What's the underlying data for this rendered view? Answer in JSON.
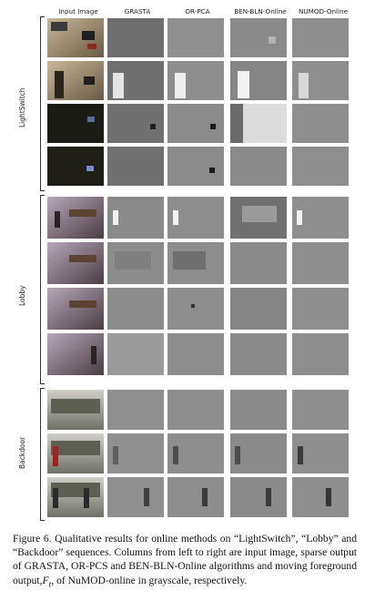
{
  "columns": [
    "Input Image",
    "GRASTA",
    "OR-PCA",
    "BEN-BLN-Online",
    "NUMOD-Online"
  ],
  "groups": [
    {
      "label": "LightSwitch",
      "rows": 4
    },
    {
      "label": "Lobby",
      "rows": 4
    },
    {
      "label": "Backdoor",
      "rows": 3
    }
  ],
  "caption": {
    "prefix": "Figure 6. Qualitative results for online methods on “LightSwitch”, “Lobby” and “Backdoor” sequences. Columns from left to right are input image, sparse output of GRASTA, OR-PCS and BEN-BLN-Online algorithms and moving foreground output,",
    "math": "F",
    "math_sub": "t",
    "suffix": ", of NuMOD-online in grayscale, respectively."
  }
}
